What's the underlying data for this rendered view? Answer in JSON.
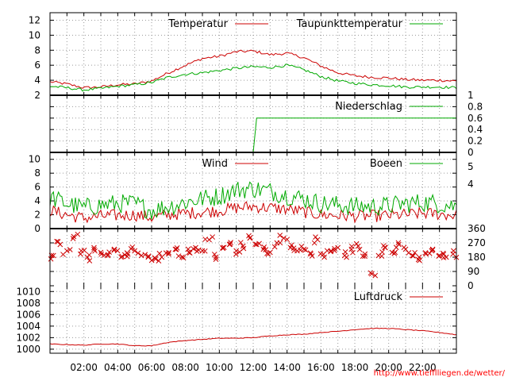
{
  "site_url": "http://www.tiefflliegen.de/wetter/",
  "colors": {
    "red": "#cc0000",
    "green": "#00aa00",
    "grid": "#888888"
  },
  "chart_data": [
    {
      "type": "line",
      "panel": "temperature",
      "x_range_hours": [
        0,
        24
      ],
      "x_tick_labels": [
        "02:00",
        "04:00",
        "06:00",
        "08:00",
        "10:00",
        "12:00",
        "14:00",
        "16:00",
        "18:00",
        "20:00",
        "22:00"
      ],
      "ylim": [
        2,
        13
      ],
      "y_ticks": [
        2,
        4,
        6,
        8,
        10,
        12
      ],
      "grid": true,
      "legend": "top-right",
      "series": [
        {
          "name": "Temperatur",
          "color": "red",
          "x": [
            0,
            1,
            2,
            3,
            4,
            5,
            6,
            7,
            8,
            9,
            10,
            11,
            12,
            13,
            14,
            15,
            16,
            17,
            18,
            19,
            20,
            21,
            22,
            23,
            24
          ],
          "y": [
            3.8,
            3.5,
            3.0,
            3.1,
            3.4,
            3.5,
            3.9,
            5.0,
            6.0,
            6.9,
            7.2,
            7.8,
            7.9,
            7.4,
            7.6,
            7.0,
            5.9,
            5.0,
            4.6,
            4.4,
            4.3,
            4.1,
            4.0,
            4.0,
            3.9
          ]
        },
        {
          "name": "Taupunkttemperatur",
          "color": "green",
          "x": [
            0,
            1,
            2,
            3,
            4,
            5,
            6,
            7,
            8,
            9,
            10,
            11,
            12,
            13,
            14,
            15,
            16,
            17,
            18,
            19,
            20,
            21,
            22,
            23,
            24
          ],
          "y": [
            3.2,
            3.0,
            2.7,
            2.9,
            3.2,
            3.4,
            3.7,
            4.4,
            4.8,
            5.0,
            5.3,
            5.6,
            5.8,
            5.7,
            6.0,
            5.4,
            4.5,
            3.9,
            3.6,
            3.4,
            3.3,
            3.1,
            3.1,
            3.1,
            3.0
          ]
        }
      ]
    },
    {
      "type": "line",
      "panel": "precipitation",
      "ylim": [
        0,
        1
      ],
      "y_ticks_right": [
        0,
        0.2,
        0.4,
        0.6,
        0.8,
        1
      ],
      "grid": true,
      "legend": "top-right",
      "series": [
        {
          "name": "Niederschlag",
          "color": "green",
          "x": [
            0,
            12.0,
            12.2,
            24
          ],
          "y": [
            0,
            0,
            0.6,
            0.6
          ]
        }
      ]
    },
    {
      "type": "line",
      "panel": "wind",
      "ylim": [
        0,
        11
      ],
      "y_ticks": [
        0,
        2,
        4,
        6,
        8,
        10
      ],
      "right_labels": [
        "5",
        "4"
      ],
      "grid": true,
      "legend": "top-right",
      "series": [
        {
          "name": "Wind",
          "color": "red",
          "x": [
            0,
            1,
            2,
            3,
            4,
            5,
            6,
            7,
            8,
            9,
            10,
            11,
            12,
            13,
            14,
            15,
            16,
            17,
            18,
            19,
            20,
            21,
            22,
            23,
            24
          ],
          "y": [
            2.6,
            2.0,
            1.5,
            1.8,
            1.9,
            2.0,
            1.6,
            2.0,
            2.2,
            2.4,
            2.6,
            3.0,
            3.2,
            3.0,
            2.8,
            2.4,
            2.0,
            1.9,
            1.8,
            1.8,
            1.9,
            2.0,
            2.2,
            2.1,
            1.9
          ]
        },
        {
          "name": "Boeen",
          "color": "green",
          "x": [
            0,
            1,
            2,
            3,
            4,
            5,
            6,
            7,
            8,
            9,
            10,
            11,
            12,
            13,
            14,
            15,
            16,
            17,
            18,
            19,
            20,
            21,
            22,
            23,
            24
          ],
          "y": [
            4.5,
            3.6,
            3.0,
            3.4,
            3.6,
            3.6,
            2.6,
            3.2,
            3.8,
            4.3,
            4.7,
            5.6,
            5.8,
            5.4,
            4.8,
            4.3,
            3.6,
            3.4,
            3.2,
            3.2,
            3.3,
            3.6,
            3.8,
            3.6,
            3.2
          ]
        }
      ]
    },
    {
      "type": "scatter",
      "panel": "wind_direction",
      "ylim": [
        0,
        360
      ],
      "y_ticks_right": [
        0,
        90,
        180,
        270,
        360
      ],
      "grid": true,
      "series": [
        {
          "name": "",
          "color": "red",
          "marker": "x",
          "x": [
            0.2,
            0.6,
            1.0,
            1.4,
            1.8,
            2.2,
            2.6,
            3.0,
            3.4,
            3.8,
            4.2,
            4.6,
            5.0,
            5.4,
            5.8,
            6.2,
            6.6,
            7.0,
            7.4,
            7.8,
            8.2,
            8.6,
            9.0,
            9.4,
            9.8,
            10.2,
            10.6,
            11.0,
            11.4,
            11.8,
            12.2,
            12.6,
            13.0,
            13.4,
            13.8,
            14.2,
            14.6,
            15.0,
            15.4,
            15.8,
            16.2,
            16.6,
            17.0,
            17.4,
            17.8,
            18.2,
            18.6,
            19.0,
            19.4,
            19.8,
            20.2,
            20.6,
            21.0,
            21.4,
            21.8,
            22.2,
            22.6,
            23.0,
            23.4,
            23.8
          ],
          "y": [
            190,
            260,
            220,
            310,
            200,
            180,
            240,
            210,
            190,
            230,
            180,
            200,
            220,
            190,
            180,
            175,
            180,
            200,
            230,
            180,
            210,
            240,
            220,
            290,
            180,
            240,
            260,
            220,
            250,
            300,
            260,
            230,
            210,
            270,
            300,
            240,
            220,
            230,
            200,
            290,
            180,
            220,
            240,
            190,
            230,
            250,
            200,
            75,
            190,
            240,
            210,
            260,
            230,
            190,
            180,
            200,
            230,
            190,
            180,
            200
          ]
        }
      ]
    },
    {
      "type": "line",
      "panel": "pressure",
      "ylim": [
        999.3,
        1011
      ],
      "y_ticks": [
        1000,
        1002,
        1004,
        1006,
        1008,
        1010
      ],
      "grid": true,
      "legend": "top-right",
      "series": [
        {
          "name": "Luftdruck",
          "color": "red",
          "x": [
            0,
            1,
            2,
            3,
            4,
            5,
            6,
            7,
            8,
            9,
            10,
            11,
            12,
            13,
            14,
            15,
            16,
            17,
            18,
            19,
            20,
            21,
            22,
            23,
            24
          ],
          "y": [
            1000.9,
            1000.8,
            1000.7,
            1000.9,
            1000.9,
            1000.6,
            1000.6,
            1001.2,
            1001.5,
            1001.7,
            1001.9,
            1001.9,
            1002.0,
            1002.3,
            1002.5,
            1002.6,
            1002.9,
            1003.1,
            1003.4,
            1003.6,
            1003.6,
            1003.4,
            1003.2,
            1002.9,
            1002.5
          ]
        }
      ]
    }
  ]
}
